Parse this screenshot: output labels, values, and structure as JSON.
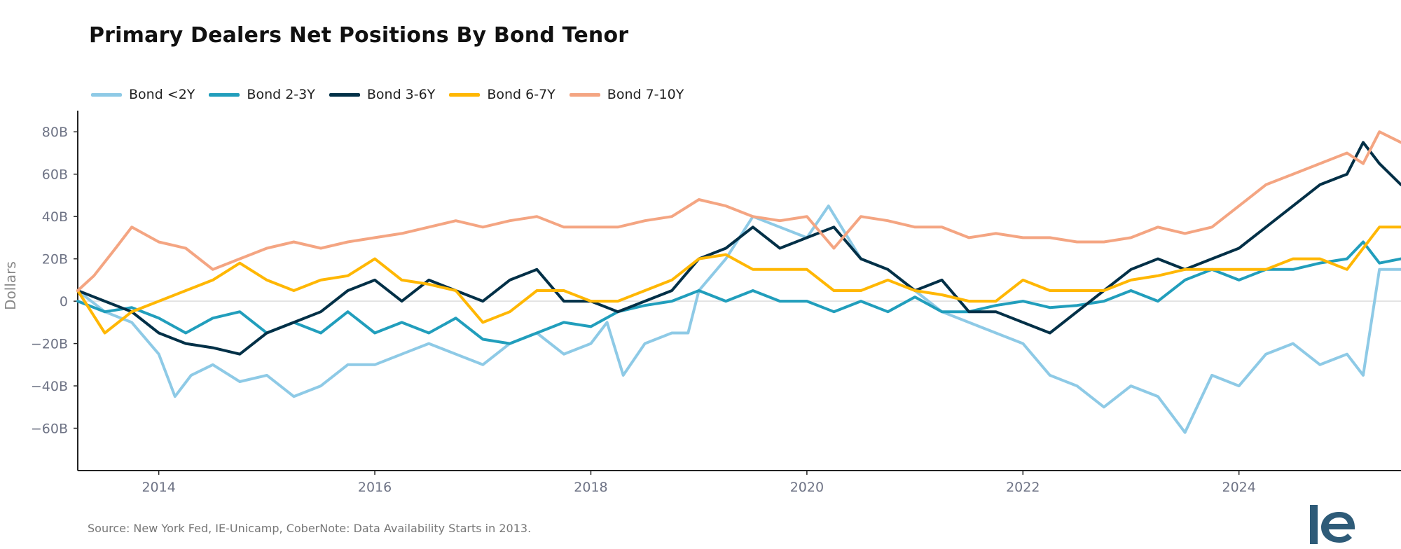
{
  "chart_data": {
    "type": "line",
    "title": "Primary Dealers Net Positions By Bond Tenor",
    "ylabel": "Dollars",
    "xlabel": "",
    "ylim": [
      -80,
      90
    ],
    "xlim": [
      2013.25,
      2025.5
    ],
    "y_ticks": [
      80,
      60,
      40,
      20,
      0,
      -20,
      -40,
      -60
    ],
    "y_tick_labels": [
      "80B",
      "60B",
      "40B",
      "20B",
      "0",
      "−20B",
      "−40B",
      "−60B"
    ],
    "x_ticks": [
      2014,
      2016,
      2018,
      2020,
      2022,
      2024
    ],
    "x_tick_labels": [
      "2014",
      "2016",
      "2018",
      "2020",
      "2022",
      "2024"
    ],
    "zero_line": true,
    "grid": false,
    "legend_position": "top-left",
    "series": [
      {
        "name": "Bond <2Y",
        "color": "#8ecae6",
        "x": [
          2013.25,
          2013.5,
          2013.75,
          2014.0,
          2014.15,
          2014.3,
          2014.5,
          2014.75,
          2015.0,
          2015.25,
          2015.5,
          2015.75,
          2016.0,
          2016.25,
          2016.5,
          2016.75,
          2017.0,
          2017.25,
          2017.5,
          2017.75,
          2018.0,
          2018.15,
          2018.3,
          2018.5,
          2018.75,
          2018.9,
          2019.0,
          2019.25,
          2019.5,
          2019.75,
          2020.0,
          2020.2,
          2020.5,
          2020.75,
          2021.0,
          2021.25,
          2021.5,
          2021.75,
          2022.0,
          2022.25,
          2022.5,
          2022.75,
          2023.0,
          2023.25,
          2023.5,
          2023.75,
          2024.0,
          2024.25,
          2024.5,
          2024.75,
          2025.0,
          2025.15,
          2025.3,
          2025.5
        ],
        "y": [
          5,
          -5,
          -10,
          -25,
          -45,
          -35,
          -30,
          -38,
          -35,
          -45,
          -40,
          -30,
          -30,
          -25,
          -20,
          -25,
          -30,
          -20,
          -15,
          -25,
          -20,
          -10,
          -35,
          -20,
          -15,
          -15,
          5,
          20,
          40,
          35,
          30,
          45,
          20,
          15,
          5,
          -5,
          -10,
          -15,
          -20,
          -35,
          -40,
          -50,
          -40,
          -45,
          -62,
          -35,
          -40,
          -25,
          -20,
          -30,
          -25,
          -35,
          15,
          15
        ]
      },
      {
        "name": "Bond 2-3Y",
        "color": "#219ebc",
        "x": [
          2013.25,
          2013.5,
          2013.75,
          2014.0,
          2014.25,
          2014.5,
          2014.75,
          2015.0,
          2015.25,
          2015.5,
          2015.75,
          2016.0,
          2016.25,
          2016.5,
          2016.75,
          2017.0,
          2017.25,
          2017.5,
          2017.75,
          2018.0,
          2018.25,
          2018.5,
          2018.75,
          2019.0,
          2019.25,
          2019.5,
          2019.75,
          2020.0,
          2020.25,
          2020.5,
          2020.75,
          2021.0,
          2021.25,
          2021.5,
          2021.75,
          2022.0,
          2022.25,
          2022.5,
          2022.75,
          2023.0,
          2023.25,
          2023.5,
          2023.75,
          2024.0,
          2024.25,
          2024.5,
          2024.75,
          2025.0,
          2025.15,
          2025.3,
          2025.5
        ],
        "y": [
          0,
          -5,
          -3,
          -8,
          -15,
          -8,
          -5,
          -15,
          -10,
          -15,
          -5,
          -15,
          -10,
          -15,
          -8,
          -18,
          -20,
          -15,
          -10,
          -12,
          -5,
          -2,
          0,
          5,
          0,
          5,
          0,
          0,
          -5,
          0,
          -5,
          2,
          -5,
          -5,
          -2,
          0,
          -3,
          -2,
          0,
          5,
          0,
          10,
          15,
          10,
          15,
          15,
          18,
          20,
          28,
          18,
          20
        ]
      },
      {
        "name": "Bond 3-6Y",
        "color": "#023047",
        "x": [
          2013.25,
          2013.5,
          2013.75,
          2014.0,
          2014.25,
          2014.5,
          2014.75,
          2015.0,
          2015.25,
          2015.5,
          2015.75,
          2016.0,
          2016.25,
          2016.5,
          2016.75,
          2017.0,
          2017.25,
          2017.5,
          2017.75,
          2018.0,
          2018.25,
          2018.5,
          2018.75,
          2019.0,
          2019.25,
          2019.5,
          2019.75,
          2020.0,
          2020.25,
          2020.5,
          2020.75,
          2021.0,
          2021.25,
          2021.5,
          2021.75,
          2022.0,
          2022.25,
          2022.5,
          2022.75,
          2023.0,
          2023.25,
          2023.5,
          2023.75,
          2024.0,
          2024.25,
          2024.5,
          2024.75,
          2025.0,
          2025.15,
          2025.3,
          2025.5
        ],
        "y": [
          5,
          0,
          -5,
          -15,
          -20,
          -22,
          -25,
          -15,
          -10,
          -5,
          5,
          10,
          0,
          10,
          5,
          0,
          10,
          15,
          0,
          0,
          -5,
          0,
          5,
          20,
          25,
          35,
          25,
          30,
          35,
          20,
          15,
          5,
          10,
          -5,
          -5,
          -10,
          -15,
          -5,
          5,
          15,
          20,
          15,
          20,
          25,
          35,
          45,
          55,
          60,
          75,
          65,
          55
        ]
      },
      {
        "name": "Bond 6-7Y",
        "color": "#ffb703",
        "x": [
          2013.25,
          2013.5,
          2013.75,
          2014.0,
          2014.25,
          2014.5,
          2014.75,
          2015.0,
          2015.25,
          2015.5,
          2015.75,
          2016.0,
          2016.25,
          2016.5,
          2016.75,
          2017.0,
          2017.25,
          2017.5,
          2017.75,
          2018.0,
          2018.25,
          2018.5,
          2018.75,
          2019.0,
          2019.25,
          2019.5,
          2019.75,
          2020.0,
          2020.25,
          2020.5,
          2020.75,
          2021.0,
          2021.25,
          2021.5,
          2021.75,
          2022.0,
          2022.25,
          2022.5,
          2022.75,
          2023.0,
          2023.25,
          2023.5,
          2023.75,
          2024.0,
          2024.25,
          2024.5,
          2024.75,
          2025.0,
          2025.15,
          2025.3,
          2025.5
        ],
        "y": [
          5,
          -15,
          -5,
          0,
          5,
          10,
          18,
          10,
          5,
          10,
          12,
          20,
          10,
          8,
          5,
          -10,
          -5,
          5,
          5,
          0,
          0,
          5,
          10,
          20,
          22,
          15,
          15,
          15,
          5,
          5,
          10,
          5,
          3,
          0,
          0,
          10,
          5,
          5,
          5,
          10,
          12,
          15,
          15,
          15,
          15,
          20,
          20,
          15,
          25,
          35,
          35
        ]
      },
      {
        "name": "Bond 7-10Y",
        "color": "#f4a582",
        "x": [
          2013.25,
          2013.4,
          2013.6,
          2013.75,
          2014.0,
          2014.25,
          2014.5,
          2014.75,
          2015.0,
          2015.25,
          2015.5,
          2015.75,
          2016.0,
          2016.25,
          2016.5,
          2016.75,
          2017.0,
          2017.25,
          2017.5,
          2017.75,
          2018.0,
          2018.25,
          2018.5,
          2018.75,
          2019.0,
          2019.25,
          2019.5,
          2019.75,
          2020.0,
          2020.25,
          2020.5,
          2020.75,
          2021.0,
          2021.25,
          2021.5,
          2021.75,
          2022.0,
          2022.25,
          2022.5,
          2022.75,
          2023.0,
          2023.25,
          2023.5,
          2023.75,
          2024.0,
          2024.25,
          2024.5,
          2024.75,
          2025.0,
          2025.15,
          2025.3,
          2025.5
        ],
        "y": [
          5,
          12,
          25,
          35,
          28,
          25,
          15,
          20,
          25,
          28,
          25,
          28,
          30,
          32,
          35,
          38,
          35,
          38,
          40,
          35,
          35,
          35,
          38,
          40,
          48,
          45,
          40,
          38,
          40,
          25,
          40,
          38,
          35,
          35,
          30,
          32,
          30,
          30,
          28,
          28,
          30,
          35,
          32,
          35,
          45,
          55,
          60,
          65,
          70,
          65,
          80,
          75
        ]
      }
    ]
  },
  "source_note": "Source: New York Fed, IE-Unicamp, CoberNote: Data Availability Starts in 2013.",
  "logo_text": "IE",
  "logo_color": "#2e5b78"
}
